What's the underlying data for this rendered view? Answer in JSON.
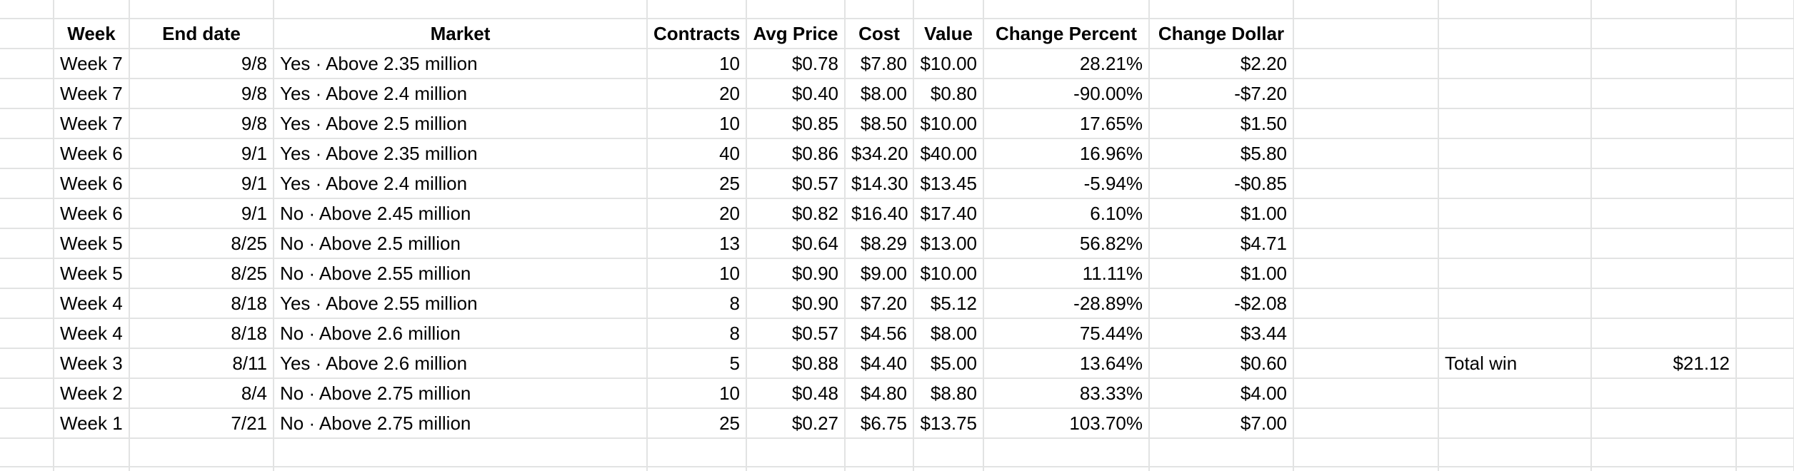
{
  "sheet": {
    "headers": {
      "week": "Week",
      "end_date": "End date",
      "market": "Market",
      "contracts": "Contracts",
      "avg_price": "Avg Price",
      "cost": "Cost",
      "value": "Value",
      "change_percent": "Change Percent",
      "change_dollar": "Change Dollar"
    },
    "rows": [
      {
        "week": "Week 7",
        "end_date": "9/8",
        "market": "Yes · Above 2.35 million",
        "contracts": "10",
        "avg_price": "$0.78",
        "cost": "$7.80",
        "value": "$10.00",
        "change_percent": "28.21%",
        "change_dollar": "$2.20"
      },
      {
        "week": "Week 7",
        "end_date": "9/8",
        "market": "Yes · Above 2.4 million",
        "contracts": "20",
        "avg_price": "$0.40",
        "cost": "$8.00",
        "value": "$0.80",
        "change_percent": "-90.00%",
        "change_dollar": "-$7.20"
      },
      {
        "week": "Week 7",
        "end_date": "9/8",
        "market": "Yes · Above 2.5 million",
        "contracts": "10",
        "avg_price": "$0.85",
        "cost": "$8.50",
        "value": "$10.00",
        "change_percent": "17.65%",
        "change_dollar": "$1.50"
      },
      {
        "week": "Week 6",
        "end_date": "9/1",
        "market": "Yes · Above 2.35 million",
        "contracts": "40",
        "avg_price": "$0.86",
        "cost": "$34.20",
        "value": "$40.00",
        "change_percent": "16.96%",
        "change_dollar": "$5.80"
      },
      {
        "week": "Week 6",
        "end_date": "9/1",
        "market": "Yes · Above 2.4 million",
        "contracts": "25",
        "avg_price": "$0.57",
        "cost": "$14.30",
        "value": "$13.45",
        "change_percent": "-5.94%",
        "change_dollar": "-$0.85"
      },
      {
        "week": "Week 6",
        "end_date": "9/1",
        "market": "No · Above 2.45 million",
        "contracts": "20",
        "avg_price": "$0.82",
        "cost": "$16.40",
        "value": "$17.40",
        "change_percent": "6.10%",
        "change_dollar": "$1.00"
      },
      {
        "week": "Week 5",
        "end_date": "8/25",
        "market": "No · Above 2.5 million",
        "contracts": "13",
        "avg_price": "$0.64",
        "cost": "$8.29",
        "value": "$13.00",
        "change_percent": "56.82%",
        "change_dollar": "$4.71"
      },
      {
        "week": "Week 5",
        "end_date": "8/25",
        "market": "No · Above 2.55 million",
        "contracts": "10",
        "avg_price": "$0.90",
        "cost": "$9.00",
        "value": "$10.00",
        "change_percent": "11.11%",
        "change_dollar": "$1.00"
      },
      {
        "week": "Week 4",
        "end_date": "8/18",
        "market": "Yes · Above 2.55 million",
        "contracts": "8",
        "avg_price": "$0.90",
        "cost": "$7.20",
        "value": "$5.12",
        "change_percent": "-28.89%",
        "change_dollar": "-$2.08"
      },
      {
        "week": "Week 4",
        "end_date": "8/18",
        "market": "No · Above 2.6 million",
        "contracts": "8",
        "avg_price": "$0.57",
        "cost": "$4.56",
        "value": "$8.00",
        "change_percent": "75.44%",
        "change_dollar": "$3.44"
      },
      {
        "week": "Week 3",
        "end_date": "8/11",
        "market": "Yes · Above 2.6 million",
        "contracts": "5",
        "avg_price": "$0.88",
        "cost": "$4.40",
        "value": "$5.00",
        "change_percent": "13.64%",
        "change_dollar": "$0.60"
      },
      {
        "week": "Week 2",
        "end_date": "8/4",
        "market": "No · Above 2.75 million",
        "contracts": "10",
        "avg_price": "$0.48",
        "cost": "$4.80",
        "value": "$8.80",
        "change_percent": "83.33%",
        "change_dollar": "$4.00"
      },
      {
        "week": "Week 1",
        "end_date": "7/21",
        "market": "No · Above 2.75 million",
        "contracts": "25",
        "avg_price": "$0.27",
        "cost": "$6.75",
        "value": "$13.75",
        "change_percent": "103.70%",
        "change_dollar": "$7.00"
      }
    ],
    "summary": {
      "row_index": 10,
      "label": "Total win",
      "value": "$21.12"
    }
  },
  "colors": {
    "gridline": "#e2e3e3",
    "background": "#ffffff",
    "text": "#000000"
  }
}
